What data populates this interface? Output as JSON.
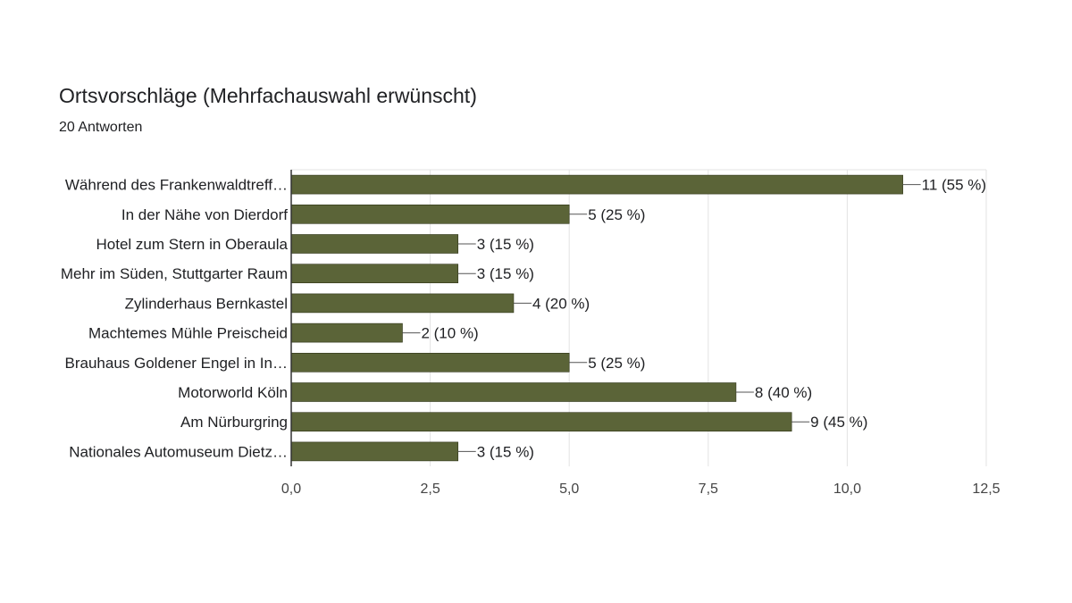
{
  "title": "Ortsvorschläge (Mehrfachauswahl erwünscht)",
  "subtitle": "20 Antworten",
  "colors": {
    "bar": "#5b6438",
    "grid": "#e3e3e3",
    "axis": "#333333",
    "text": "#202124"
  },
  "chart_data": {
    "type": "bar",
    "orientation": "horizontal",
    "categories": [
      "Während des Frankenwaldtreff…",
      "In der Nähe von Dierdorf",
      "Hotel zum Stern in Oberaula",
      "Mehr im Süden, Stuttgarter Raum",
      "Zylinderhaus Bernkastel",
      "Machtemes Mühle Preischeid",
      "Brauhaus Goldener Engel in In…",
      "Motorworld Köln",
      "Am Nürburgring",
      "Nationales Automuseum Dietz…"
    ],
    "values": [
      11,
      5,
      3,
      3,
      4,
      2,
      5,
      8,
      9,
      3
    ],
    "value_labels": [
      "11 (55 %)",
      "5 (25 %)",
      "3 (15 %)",
      "3 (15 %)",
      "4 (20 %)",
      "2 (10 %)",
      "5 (25 %)",
      "8 (40 %)",
      "9 (45 %)",
      "3 (15 %)"
    ],
    "xlim": [
      0,
      12.5
    ],
    "xticks": [
      0,
      2.5,
      5,
      7.5,
      10,
      12.5
    ],
    "xtick_labels": [
      "0,0",
      "2,5",
      "5,0",
      "7,5",
      "10,0",
      "12,5"
    ],
    "grid": true,
    "legend": "none"
  }
}
